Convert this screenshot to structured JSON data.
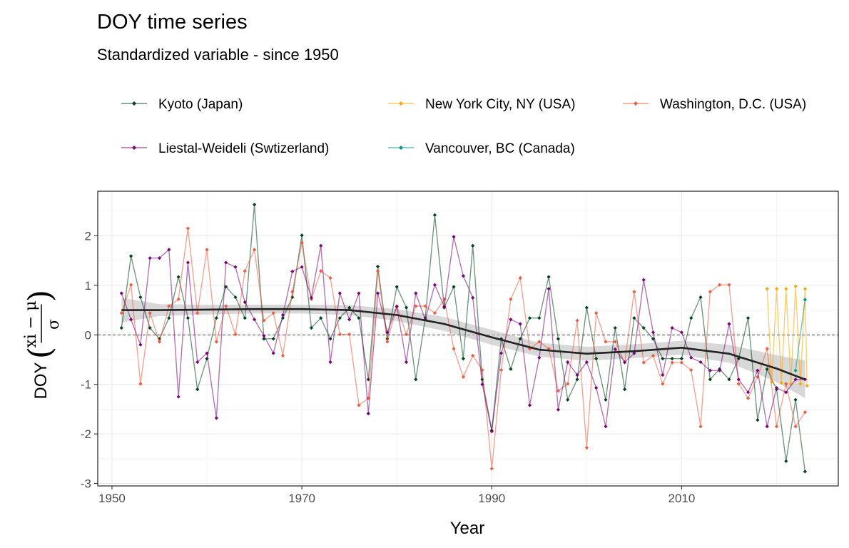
{
  "chart_data": {
    "type": "line",
    "title": "DOY time series",
    "subtitle": "Standardized variable - since 1950",
    "xlabel": "Year",
    "ylabel": "DOY",
    "ylabel_math": {
      "numerator": "xi − μ",
      "denominator": "σ"
    },
    "xlim": [
      1948.5,
      2026.5
    ],
    "ylim": [
      -3.05,
      2.9
    ],
    "x_ticks": [
      1950,
      1970,
      1990,
      2010
    ],
    "x_tick_labels": [
      "1950",
      "1970",
      "1990",
      "2010"
    ],
    "y_ticks": [
      -3,
      -2,
      -1,
      0,
      1,
      2
    ],
    "y_tick_labels": [
      "-3",
      "-2",
      "-1",
      "0",
      "1",
      "2"
    ],
    "grid": true,
    "legend_position": "top",
    "reference_line": {
      "y": 0,
      "style": "dashed"
    },
    "series": [
      {
        "name": "Kyoto (Japan)",
        "color": "#00441b",
        "x": [
          1951,
          1952,
          1953,
          1954,
          1955,
          1956,
          1957,
          1958,
          1959,
          1960,
          1961,
          1962,
          1963,
          1964,
          1965,
          1966,
          1967,
          1968,
          1969,
          1970,
          1971,
          1972,
          1973,
          1974,
          1975,
          1976,
          1977,
          1978,
          1979,
          1980,
          1981,
          1982,
          1983,
          1984,
          1985,
          1986,
          1987,
          1988,
          1989,
          1990,
          1991,
          1992,
          1993,
          1994,
          1995,
          1996,
          1997,
          1998,
          1999,
          2000,
          2001,
          2002,
          2003,
          2004,
          2005,
          2006,
          2007,
          2008,
          2009,
          2010,
          2011,
          2012,
          2013,
          2014,
          2015,
          2016,
          2017,
          2018,
          2019,
          2020,
          2021,
          2022,
          2023
        ],
        "values": [
          0.14,
          1.59,
          0.76,
          0.14,
          -0.08,
          0.34,
          1.17,
          0.34,
          -1.1,
          -0.48,
          0.34,
          0.97,
          0.76,
          0.34,
          2.63,
          -0.08,
          -0.08,
          0.34,
          0.76,
          2.01,
          0.14,
          0.34,
          -0.08,
          0.34,
          0.55,
          0.34,
          -0.9,
          1.38,
          -0.08,
          0.97,
          0.55,
          -0.9,
          0.34,
          2.42,
          0.55,
          0.97,
          -0.48,
          1.8,
          -0.9,
          -1.93,
          -0.08,
          -0.69,
          -0.08,
          0.34,
          0.34,
          1.17,
          -0.08,
          -1.31,
          -0.9,
          0.55,
          -0.48,
          -1.31,
          0.14,
          -1.1,
          0.34,
          0.14,
          -0.08,
          -0.48,
          -0.48,
          -0.48,
          0.34,
          0.76,
          -0.9,
          -0.69,
          -0.9,
          -0.48,
          0.34,
          -1.72,
          -0.69,
          -1.1,
          -2.55,
          -1.31,
          -2.76
        ]
      },
      {
        "name": "New York City, NY (USA)",
        "color": "#ffa600",
        "x": [
          2019,
          2019.5,
          2020,
          2020.5,
          2021,
          2021.5,
          2022,
          2022.5,
          2023,
          2023.2
        ],
        "values": [
          0.93,
          -0.95,
          0.93,
          -0.97,
          0.93,
          -0.99,
          0.98,
          -0.99,
          0.93,
          -1.03
        ]
      },
      {
        "name": "Washington, D.C. (USA)",
        "color": "#ef5a3c",
        "x": [
          1951,
          1952,
          1953,
          1954,
          1955,
          1956,
          1957,
          1958,
          1959,
          1960,
          1961,
          1962,
          1963,
          1964,
          1965,
          1966,
          1967,
          1968,
          1969,
          1970,
          1971,
          1972,
          1973,
          1974,
          1975,
          1976,
          1977,
          1978,
          1979,
          1980,
          1981,
          1982,
          1983,
          1984,
          1985,
          1986,
          1987,
          1988,
          1989,
          1990,
          1991,
          1992,
          1993,
          1994,
          1995,
          1996,
          1997,
          1998,
          1999,
          2000,
          2001,
          2002,
          2003,
          2004,
          2005,
          2006,
          2007,
          2008,
          2009,
          2010,
          2011,
          2012,
          2013,
          2014,
          2015,
          2016,
          2017,
          2018,
          2019,
          2020,
          2021,
          2022,
          2023
        ],
        "values": [
          0.44,
          1.01,
          -0.99,
          0.44,
          -0.14,
          0.58,
          0.72,
          2.15,
          0.44,
          1.72,
          -0.14,
          0.58,
          0.01,
          1.29,
          1.72,
          0.29,
          0.44,
          -0.42,
          0.87,
          1.86,
          0.72,
          1.29,
          1.15,
          0.01,
          0.01,
          -1.42,
          -1.28,
          1.29,
          -0.14,
          0.58,
          0.01,
          0.58,
          0.58,
          0.44,
          0.72,
          -0.28,
          -0.85,
          -0.42,
          -0.71,
          -2.7,
          -0.71,
          0.72,
          1.15,
          -0.28,
          -0.14,
          -0.28,
          -1.13,
          -0.99,
          0.29,
          -2.28,
          0.44,
          -0.14,
          -0.14,
          -0.56,
          0.87,
          -0.56,
          -0.42,
          -0.99,
          -0.56,
          -0.56,
          -0.71,
          -1.85,
          0.87,
          1.01,
          1.01,
          -0.99,
          -1.28,
          -0.85,
          -0.28,
          -1.85,
          -0.99,
          -1.85,
          -1.56
        ]
      },
      {
        "name": "Liestal-Weideli (Swtizerland)",
        "color": "#7a0177",
        "x": [
          1951,
          1952,
          1953,
          1954,
          1955,
          1956,
          1957,
          1958,
          1959,
          1960,
          1961,
          1962,
          1963,
          1964,
          1965,
          1966,
          1967,
          1968,
          1969,
          1970,
          1971,
          1972,
          1973,
          1974,
          1975,
          1976,
          1977,
          1978,
          1979,
          1980,
          1981,
          1982,
          1983,
          1984,
          1985,
          1986,
          1987,
          1988,
          1989,
          1990,
          1991,
          1992,
          1993,
          1994,
          1995,
          1996,
          1997,
          1998,
          1999,
          2000,
          2001,
          2002,
          2003,
          2004,
          2005,
          2006,
          2007,
          2008,
          2009,
          2010,
          2011,
          2012,
          2013,
          2014,
          2015,
          2016,
          2017,
          2018,
          2019,
          2020,
          2021,
          2022,
          2023
        ],
        "values": [
          0.84,
          0.31,
          -0.2,
          1.55,
          1.55,
          1.72,
          -1.25,
          1.46,
          -0.55,
          -0.37,
          -1.68,
          1.46,
          1.37,
          0.66,
          0.31,
          -0.02,
          -0.37,
          0.4,
          1.28,
          1.37,
          0.75,
          1.8,
          -0.55,
          0.84,
          0.31,
          0.84,
          -1.59,
          0.84,
          0.05,
          0.57,
          -0.55,
          0.84,
          0.31,
          1.01,
          0.57,
          1.98,
          1.19,
          0.75,
          -1.0,
          -1.95,
          -0.37,
          0.31,
          0.22,
          -1.42,
          -0.46,
          0.93,
          -1.51,
          -0.55,
          -0.81,
          -0.55,
          -1.07,
          -1.85,
          -0.29,
          -0.55,
          -0.37,
          1.11,
          0.05,
          -0.81,
          0.14,
          0.05,
          -0.46,
          -0.55,
          -0.72,
          -0.72,
          0.22,
          -0.9,
          -1.16,
          -0.72,
          -1.85,
          -1.07,
          -1.16,
          -0.9,
          -0.9
        ]
      },
      {
        "name": "Vancouver, BC (Canada)",
        "color": "#00998a",
        "x": [
          2022,
          2023
        ],
        "values": [
          -0.72,
          0.71
        ]
      }
    ],
    "smooth": {
      "color": "#222222",
      "ribbon_color": "#bebebe",
      "x": [
        1951,
        1955,
        1960,
        1965,
        1970,
        1975,
        1980,
        1985,
        1990,
        1995,
        2000,
        2005,
        2010,
        2015,
        2020,
        2023
      ],
      "values": [
        0.5,
        0.5,
        0.51,
        0.52,
        0.52,
        0.5,
        0.4,
        0.22,
        -0.05,
        -0.3,
        -0.38,
        -0.33,
        -0.26,
        -0.38,
        -0.68,
        -0.9
      ],
      "lower": [
        0.25,
        0.38,
        0.41,
        0.43,
        0.43,
        0.4,
        0.28,
        0.08,
        -0.2,
        -0.44,
        -0.52,
        -0.47,
        -0.4,
        -0.56,
        -0.95,
        -1.28
      ],
      "upper": [
        0.75,
        0.62,
        0.61,
        0.61,
        0.61,
        0.6,
        0.52,
        0.36,
        0.1,
        -0.16,
        -0.24,
        -0.19,
        -0.12,
        -0.2,
        -0.41,
        -0.52
      ]
    }
  }
}
